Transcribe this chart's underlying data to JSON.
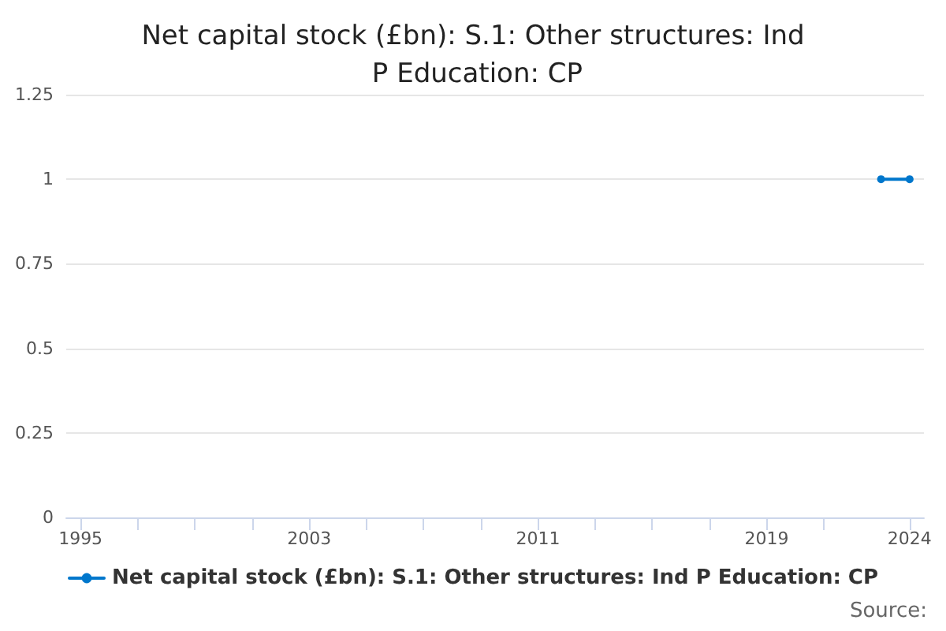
{
  "chart_data": {
    "type": "line",
    "title": "Net capital stock (£bn): S.1: Other structures: Ind P Education: CP",
    "x": [
      2023,
      2024
    ],
    "series": [
      {
        "name": "Net capital stock (£bn): S.1: Other structures: Ind P Education: CP",
        "color": "#0077cc",
        "values": [
          1,
          1
        ]
      }
    ],
    "xlim": [
      1994.5,
      2024.5
    ],
    "xticks": [
      1995,
      {
        "value": 1997,
        "label": null
      },
      {
        "value": 1999,
        "label": null
      },
      {
        "value": 2001,
        "label": null
      },
      2003,
      {
        "value": 2005,
        "label": null
      },
      {
        "value": 2007,
        "label": null
      },
      {
        "value": 2009,
        "label": null
      },
      2011,
      {
        "value": 2013,
        "label": null
      },
      {
        "value": 2015,
        "label": null
      },
      {
        "value": 2017,
        "label": null
      },
      2019,
      {
        "value": 2021,
        "label": null
      },
      2024
    ],
    "ylim": [
      0,
      1.25
    ],
    "yticks": [
      0,
      0.25,
      0.5,
      0.75,
      1,
      1.25
    ],
    "grid": "y",
    "legend": "bottom",
    "marker": "circle",
    "line_style": "solid",
    "annotations": [
      "Source:"
    ]
  }
}
